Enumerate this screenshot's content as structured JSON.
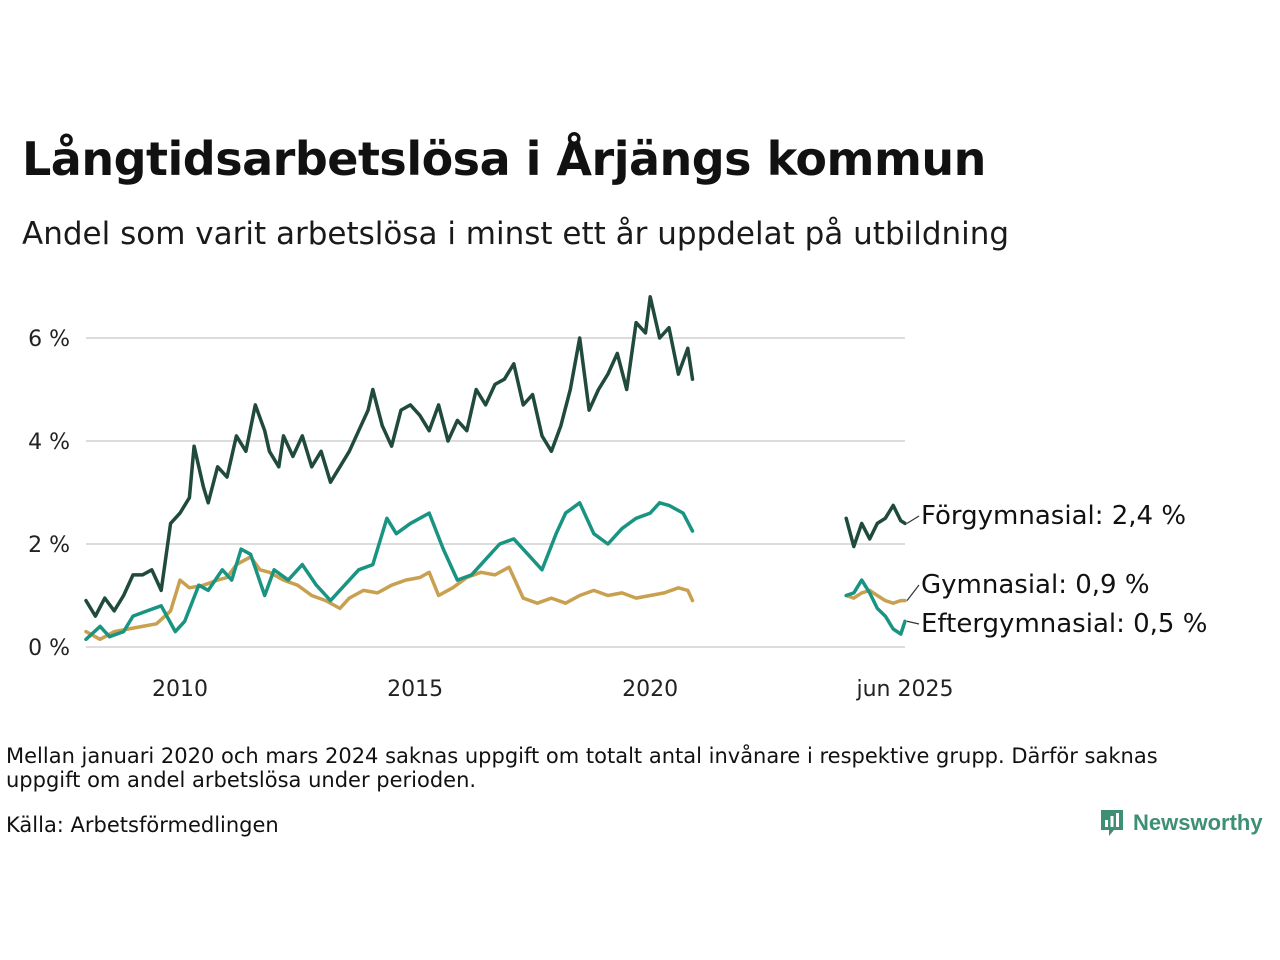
{
  "title": "Långtidsarbetslösa i Årjängs kommun",
  "subtitle": "Andel som varit arbetslösa i minst ett år uppdelat på utbildning",
  "note": "Mellan januari 2020 och mars 2024 saknas uppgift om totalt antal invånare i respektive grupp. Därför saknas uppgift om andel arbetslösa under perioden.",
  "source": "Källa: Arbetsförmedlingen",
  "brand": "Newsworthy",
  "chart_data": {
    "type": "line",
    "xlabel": "",
    "ylabel": "",
    "ylim": [
      0,
      7
    ],
    "y_ticks": [
      0,
      2,
      4,
      6
    ],
    "y_tick_labels": [
      "0 %",
      "2 %",
      "4 %",
      "6 %"
    ],
    "x_tick_labels": [
      {
        "x": 2010,
        "label": "2010"
      },
      {
        "x": 2015,
        "label": "2015"
      },
      {
        "x": 2020,
        "label": "2020"
      },
      {
        "x": 2025.42,
        "label": "jun 2025"
      }
    ],
    "grid": "horizontal",
    "legend": "right, direct labels",
    "series": [
      {
        "name": "Förgymnasial",
        "end_label": "Förgymnasial: 2,4 %",
        "color": "#1f4a3d",
        "segments": [
          {
            "x": [
              2008.0,
              2008.2,
              2008.4,
              2008.6,
              2008.8,
              2009.0,
              2009.2,
              2009.4,
              2009.6,
              2009.8,
              2010.0,
              2010.2,
              2010.3,
              2010.5,
              2010.6,
              2010.8,
              2011.0,
              2011.2,
              2011.4,
              2011.6,
              2011.8,
              2011.9,
              2012.1,
              2012.2,
              2012.4,
              2012.6,
              2012.8,
              2013.0,
              2013.2,
              2013.4,
              2013.6,
              2013.8,
              2014.0,
              2014.1,
              2014.3,
              2014.5,
              2014.7,
              2014.9,
              2015.1,
              2015.3,
              2015.5,
              2015.7,
              2015.9,
              2016.1,
              2016.3,
              2016.5,
              2016.7,
              2016.9,
              2017.1,
              2017.3,
              2017.5,
              2017.7,
              2017.9,
              2018.1,
              2018.3,
              2018.5,
              2018.7,
              2018.9,
              2019.1,
              2019.3,
              2019.5,
              2019.7,
              2019.9,
              2020.0,
              2020.2,
              2020.4,
              2020.6,
              2020.8,
              2020.9
            ],
            "y": [
              0.9,
              0.6,
              0.95,
              0.7,
              1.0,
              1.4,
              1.4,
              1.5,
              1.1,
              2.4,
              2.6,
              2.9,
              3.9,
              3.1,
              2.8,
              3.5,
              3.3,
              4.1,
              3.8,
              4.7,
              4.2,
              3.8,
              3.5,
              4.1,
              3.7,
              4.1,
              3.5,
              3.8,
              3.2,
              3.5,
              3.8,
              4.2,
              4.6,
              5.0,
              4.3,
              3.9,
              4.6,
              4.7,
              4.5,
              4.2,
              4.7,
              4.0,
              4.4,
              4.2,
              5.0,
              4.7,
              5.1,
              5.2,
              5.5,
              4.7,
              4.9,
              4.1,
              3.8,
              4.3,
              5.0,
              6.0,
              4.6,
              5.0,
              5.3,
              5.7,
              5.0,
              6.3,
              6.1,
              6.8,
              6.0,
              6.2,
              5.3,
              5.8,
              5.2
            ]
          },
          {
            "x": [
              2024.17,
              2024.33,
              2024.5,
              2024.67,
              2024.83,
              2025.0,
              2025.17,
              2025.33,
              2025.42
            ],
            "y": [
              2.5,
              1.95,
              2.4,
              2.1,
              2.4,
              2.5,
              2.75,
              2.45,
              2.4
            ]
          }
        ]
      },
      {
        "name": "Gymnasial",
        "end_label": "Gymnasial: 0,9 %",
        "color": "#c9a04f",
        "segments": [
          {
            "x": [
              2008.0,
              2008.3,
              2008.6,
              2008.9,
              2009.2,
              2009.5,
              2009.8,
              2010.0,
              2010.2,
              2010.5,
              2010.8,
              2011.0,
              2011.2,
              2011.5,
              2011.7,
              2011.9,
              2012.2,
              2012.5,
              2012.8,
              2013.1,
              2013.4,
              2013.6,
              2013.9,
              2014.2,
              2014.5,
              2014.8,
              2015.1,
              2015.3,
              2015.5,
              2015.8,
              2016.1,
              2016.4,
              2016.7,
              2017.0,
              2017.3,
              2017.6,
              2017.9,
              2018.2,
              2018.5,
              2018.8,
              2019.1,
              2019.4,
              2019.7,
              2020.0,
              2020.3,
              2020.6,
              2020.8,
              2020.9
            ],
            "y": [
              0.3,
              0.15,
              0.3,
              0.35,
              0.4,
              0.45,
              0.7,
              1.3,
              1.15,
              1.2,
              1.3,
              1.35,
              1.6,
              1.75,
              1.5,
              1.45,
              1.3,
              1.2,
              1.0,
              0.9,
              0.75,
              0.95,
              1.1,
              1.05,
              1.2,
              1.3,
              1.35,
              1.45,
              1.0,
              1.15,
              1.35,
              1.45,
              1.4,
              1.55,
              0.95,
              0.85,
              0.95,
              0.85,
              1.0,
              1.1,
              1.0,
              1.05,
              0.95,
              1.0,
              1.05,
              1.15,
              1.1,
              0.9
            ]
          },
          {
            "x": [
              2024.17,
              2024.33,
              2024.5,
              2024.67,
              2024.83,
              2025.0,
              2025.17,
              2025.33,
              2025.42
            ],
            "y": [
              1.0,
              0.95,
              1.05,
              1.1,
              1.0,
              0.9,
              0.85,
              0.9,
              0.9
            ]
          }
        ]
      },
      {
        "name": "Eftergymnasial",
        "end_label": "Eftergymnasial: 0,5 %",
        "color": "#1a9482",
        "segments": [
          {
            "x": [
              2008.0,
              2008.3,
              2008.5,
              2008.8,
              2009.0,
              2009.3,
              2009.6,
              2009.9,
              2010.1,
              2010.4,
              2010.6,
              2010.9,
              2011.1,
              2011.3,
              2011.5,
              2011.8,
              2012.0,
              2012.3,
              2012.6,
              2012.9,
              2013.2,
              2013.5,
              2013.8,
              2014.1,
              2014.4,
              2014.6,
              2014.9,
              2015.1,
              2015.3,
              2015.6,
              2015.9,
              2016.2,
              2016.5,
              2016.8,
              2017.1,
              2017.4,
              2017.7,
              2018.0,
              2018.2,
              2018.5,
              2018.8,
              2019.1,
              2019.4,
              2019.7,
              2020.0,
              2020.2,
              2020.4,
              2020.7,
              2020.9
            ],
            "y": [
              0.15,
              0.4,
              0.2,
              0.3,
              0.6,
              0.7,
              0.8,
              0.3,
              0.5,
              1.2,
              1.1,
              1.5,
              1.3,
              1.9,
              1.8,
              1.0,
              1.5,
              1.3,
              1.6,
              1.2,
              0.9,
              1.2,
              1.5,
              1.6,
              2.5,
              2.2,
              2.4,
              2.5,
              2.6,
              1.9,
              1.3,
              1.4,
              1.7,
              2.0,
              2.1,
              1.8,
              1.5,
              2.2,
              2.6,
              2.8,
              2.2,
              2.0,
              2.3,
              2.5,
              2.6,
              2.8,
              2.75,
              2.6,
              2.25
            ]
          },
          {
            "x": [
              2024.17,
              2024.33,
              2024.5,
              2024.67,
              2024.83,
              2025.0,
              2025.17,
              2025.33,
              2025.42
            ],
            "y": [
              1.0,
              1.05,
              1.3,
              1.05,
              0.75,
              0.6,
              0.35,
              0.25,
              0.5
            ]
          }
        ]
      }
    ]
  }
}
